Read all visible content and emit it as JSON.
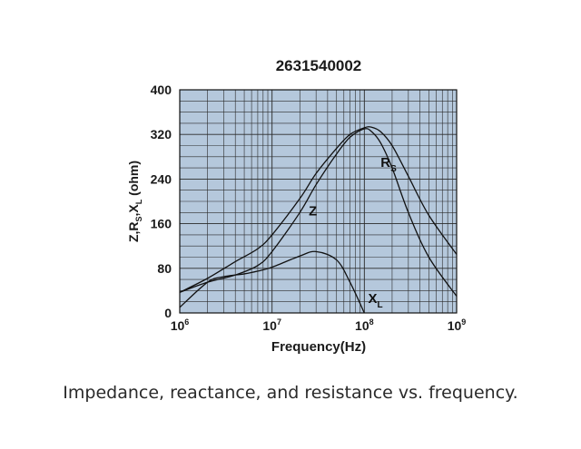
{
  "chart_data": {
    "type": "line",
    "title": "2631540002",
    "xlabel": "Frequency(Hz)",
    "ylabel": {
      "base": "Z,R",
      "sub_s": "S",
      "sep": ",X",
      "sub_l": "L",
      "tail": " (ohm)"
    },
    "x_scale": "log",
    "xlim": [
      1000000,
      1000000000
    ],
    "ylim": [
      0,
      400
    ],
    "x_ticks": [
      {
        "value": 1000000,
        "base": "10",
        "exp": "6"
      },
      {
        "value": 10000000,
        "base": "10",
        "exp": "7"
      },
      {
        "value": 100000000,
        "base": "10",
        "exp": "8"
      },
      {
        "value": 1000000000,
        "base": "10",
        "exp": "9"
      }
    ],
    "y_ticks": [
      "0",
      "80",
      "160",
      "240",
      "320",
      "400"
    ],
    "y_tick_values": [
      0,
      80,
      160,
      240,
      320,
      400
    ],
    "grid": true,
    "plot_background": "#b5c8dc",
    "series": [
      {
        "key": "Z",
        "name": "Z",
        "label_sub": "",
        "label_at": [
          25000000,
          175
        ],
        "x": [
          1000000,
          2000000,
          4000000,
          7000000,
          10000000,
          20000000,
          30000000,
          50000000,
          70000000,
          100000000,
          120000000,
          150000000,
          200000000,
          300000000,
          500000000,
          1000000000
        ],
        "values": [
          37,
          62,
          92,
          115,
          140,
          205,
          250,
          295,
          320,
          332,
          333,
          325,
          300,
          245,
          175,
          105
        ]
      },
      {
        "key": "Rs",
        "name": "R",
        "label_sub": "S",
        "label_at": [
          150000000,
          262
        ],
        "x": [
          1000000,
          2000000,
          4000000,
          7000000,
          10000000,
          20000000,
          30000000,
          50000000,
          70000000,
          100000000,
          120000000,
          150000000,
          200000000,
          300000000,
          500000000,
          1000000000
        ],
        "values": [
          37,
          55,
          68,
          85,
          110,
          180,
          230,
          285,
          315,
          330,
          325,
          305,
          260,
          180,
          100,
          30
        ]
      },
      {
        "key": "XL",
        "name": "X",
        "label_sub": "L",
        "label_at": [
          110000000,
          18
        ],
        "x": [
          1000000,
          2000000,
          3000000,
          5000000,
          7000000,
          10000000,
          20000000,
          30000000,
          50000000,
          70000000,
          100000000
        ],
        "values": [
          10,
          55,
          65,
          70,
          75,
          82,
          102,
          110,
          95,
          55,
          0
        ]
      }
    ],
    "caption": "Impedance, reactance, and resistance vs. frequency."
  }
}
